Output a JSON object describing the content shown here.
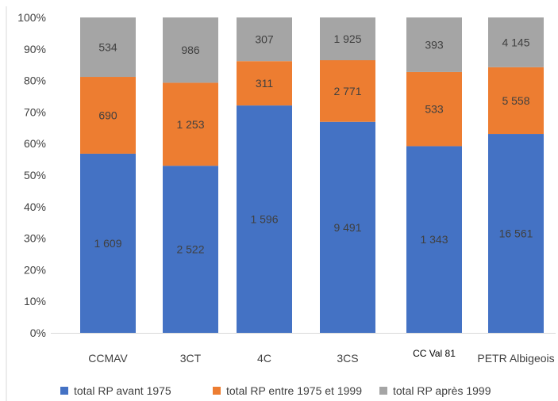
{
  "chart_data": {
    "type": "bar",
    "stacked": "percent",
    "categories": [
      "CCMAV",
      "3CT",
      "4C",
      "3CS",
      "CC Val 81",
      "PETR Albigeois"
    ],
    "series": [
      {
        "name": "total RP avant 1975",
        "color": "#4472C4",
        "values": [
          1609,
          2522,
          1596,
          9491,
          1343,
          16561
        ],
        "labels": [
          "1 609",
          "2 522",
          "1 596",
          "9 491",
          "1 343",
          "16 561"
        ]
      },
      {
        "name": "total RP entre 1975 et 1999",
        "color": "#ED7D31",
        "values": [
          690,
          1253,
          311,
          2771,
          533,
          5558
        ],
        "labels": [
          "690",
          "1 253",
          "311",
          "2 771",
          "533",
          "5 558"
        ]
      },
      {
        "name": "total RP après 1999",
        "color": "#A5A5A5",
        "values": [
          534,
          986,
          307,
          1925,
          393,
          4145
        ],
        "labels": [
          "534",
          "986",
          "307",
          "1 925",
          "393",
          "4 145"
        ]
      }
    ],
    "yticks": [
      "0%",
      "10%",
      "20%",
      "30%",
      "40%",
      "50%",
      "60%",
      "70%",
      "80%",
      "90%",
      "100%"
    ],
    "ylim": [
      0,
      100
    ],
    "grid": false,
    "legend": "bottom"
  }
}
